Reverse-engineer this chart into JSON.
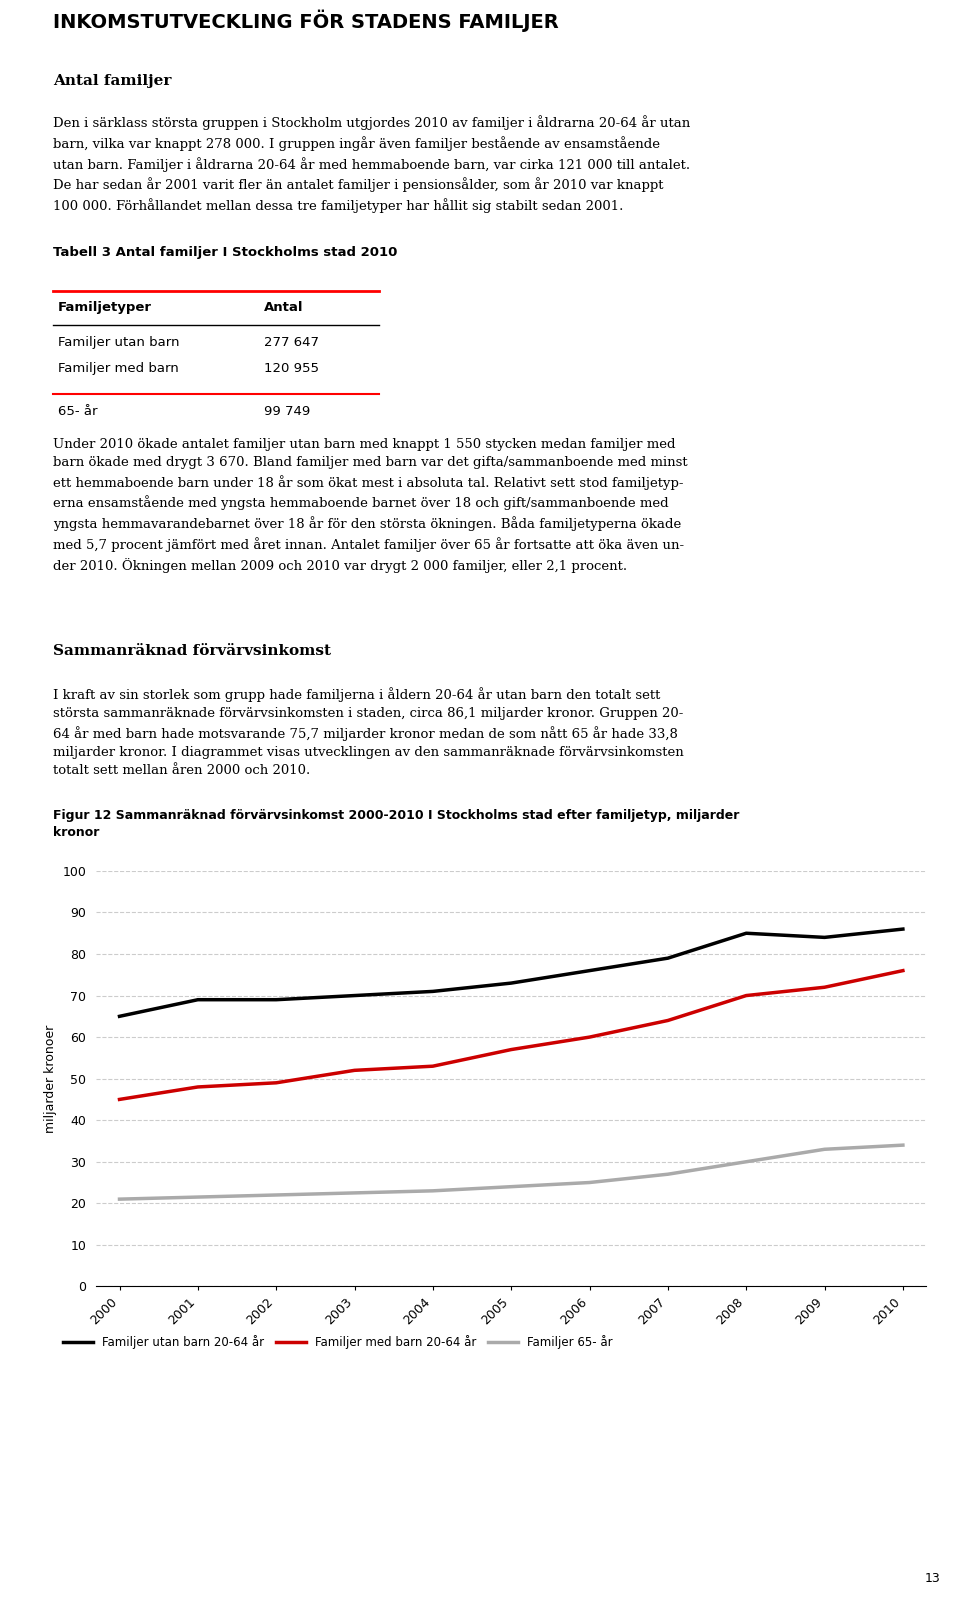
{
  "title": "INKOMSTUTVECKLING FÖR STADENS FAMILJER",
  "section1_title": "Antal familjer",
  "section1_body": "Den i särklass största gruppen i Stockholm utgjordes 2010 av familjer i åldrarna 20-64 år utan barn, vilka var knappt 278 000. I gruppen ingår även familjer bestående av ensamstående utan barn. Familjer i åldrarna 20-64 år med hemmaboende barn, var cirka 121 000 till antalet. De har sedan år 2001 varit fler än antalet familjer i pensionsålder, som år 2010 var knappt 100 000. Förhållandet mellan dessa tre familjetyper har hållit sig stabilt sedan 2001.",
  "table_title": "Tabell 3 Antal familjer I Stockholms stad 2010",
  "table_headers": [
    "Familjetyper",
    "Antal"
  ],
  "table_rows": [
    [
      "Familjer utan barn",
      "277 647"
    ],
    [
      "Familjer med barn",
      "120 955"
    ],
    [
      "65- år",
      "99 749"
    ]
  ],
  "section2_body": "Under 2010 ökade antalet familjer utan barn med knappt 1 550 stycken medan familjer med barn ökade med drygt 3 670. Bland familjer med barn var det gifta/sammanboende med minst ett hemmaboende barn under 18 år som ökat mest i absoluta tal. Relativt sett stod familjetyperna ensamstående med yngsta hemmaboende barnet över 18 och gift/sammanboende med yngsta hemmavarandebarnet över 18 år för den största ökningen. Båda familjetyperna ökade med 5,7 procent jämfört med året innan. Antalet familjer över 65 år fortsatte att öka även under 2010. Ökningen mellan 2009 och 2010 var drygt 2 000 familjer, eller 2,1 procent.",
  "section3_title": "Sammanräknad förvärvsinkomst",
  "section3_body": "I kraft av sin storlek som grupp hade familjerna i åldern 20-64 år utan barn den totalt sett största sammanräknade förvärvsinkomsten i staden, circa 86,1 miljarder kronor. Gruppen 20-64 år med barn hade motsvarande 75,7 miljarder kronor medan de som nått 65 år hade 33,8 miljarder kronor. I diagrammet visas utvecklingen av den sammanräknade förvärvsinkomsten totalt sett mellan åren 2000 och 2010.",
  "fig_title_line1": "Figur 12 Sammanräknad förvärvsinkomst 2000-2010 I Stockholms stad efter familjetyp, miljarder",
  "fig_title_line2": "kronor",
  "years": [
    2000,
    2001,
    2002,
    2003,
    2004,
    2005,
    2006,
    2007,
    2008,
    2009,
    2010
  ],
  "series_utan_barn": [
    65,
    69,
    69,
    70,
    71,
    73,
    76,
    79,
    85,
    84,
    86
  ],
  "series_med_barn": [
    45,
    48,
    49,
    52,
    53,
    57,
    60,
    64,
    70,
    72,
    76
  ],
  "series_65": [
    21,
    21.5,
    22,
    22.5,
    23,
    24,
    25,
    27,
    30,
    33,
    34
  ],
  "color_utan_barn": "#000000",
  "color_med_barn": "#cc0000",
  "color_65ar": "#aaaaaa",
  "ylabel": "miljarder kronoer",
  "ylim": [
    0,
    100
  ],
  "yticks": [
    0,
    10,
    20,
    30,
    40,
    50,
    60,
    70,
    80,
    90,
    100
  ],
  "legend_labels": [
    "Familjer utan barn 20-64 år",
    "Familjer med barn 20-64 år",
    "Familjer 65- år"
  ],
  "page_number": "13",
  "bg_color": "#ffffff",
  "grid_color": "#cccccc"
}
